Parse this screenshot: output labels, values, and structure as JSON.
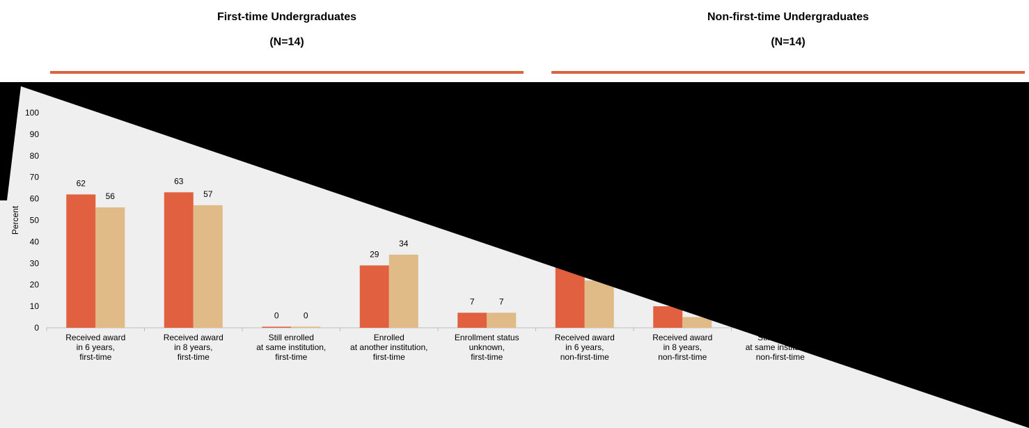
{
  "colors": {
    "rule": "#d9643f",
    "panel": "#efefef",
    "series1": "#e06040",
    "series2": "#e0bb88",
    "overlay": "#000000"
  },
  "headers": [
    {
      "title": "First-time Undergraduates",
      "n": "(N=14)"
    },
    {
      "title": "Non-first-time Undergraduates",
      "n": "(N=14)"
    }
  ],
  "chart_data": {
    "type": "bar",
    "ylabel": "Percent",
    "ylim": [
      0,
      100
    ],
    "yticks": [
      "0",
      "10",
      "20",
      "30",
      "40",
      "50",
      "60",
      "70",
      "80",
      "90",
      "100"
    ],
    "grid": false,
    "categories": [
      [
        "Received award",
        "in 6 years,",
        "first-time"
      ],
      [
        "Received award",
        "in 8 years,",
        "first-time"
      ],
      [
        "Still enrolled",
        "at same institution,",
        "first-time"
      ],
      [
        "Enrolled",
        "at another institution,",
        "first-time"
      ],
      [
        "Enrollment status",
        "unknown,",
        "first-time"
      ],
      [
        "Received award",
        "in 6 years,",
        "non-first-time"
      ],
      [
        "Received award",
        "in 8 years,",
        "non-first-time"
      ],
      [
        "Still enrolled",
        "at same institution,",
        "non-first-time"
      ]
    ],
    "series": [
      {
        "values": [
          62,
          63,
          0.5,
          29,
          7,
          28,
          10,
          null
        ],
        "labels": [
          "62",
          "63",
          "0",
          "29",
          "7",
          "",
          "",
          ""
        ]
      },
      {
        "values": [
          56,
          57,
          0.5,
          34,
          7,
          22,
          5,
          null
        ],
        "labels": [
          "56",
          "57",
          "0",
          "34",
          "7",
          "",
          "",
          ""
        ]
      }
    ]
  }
}
